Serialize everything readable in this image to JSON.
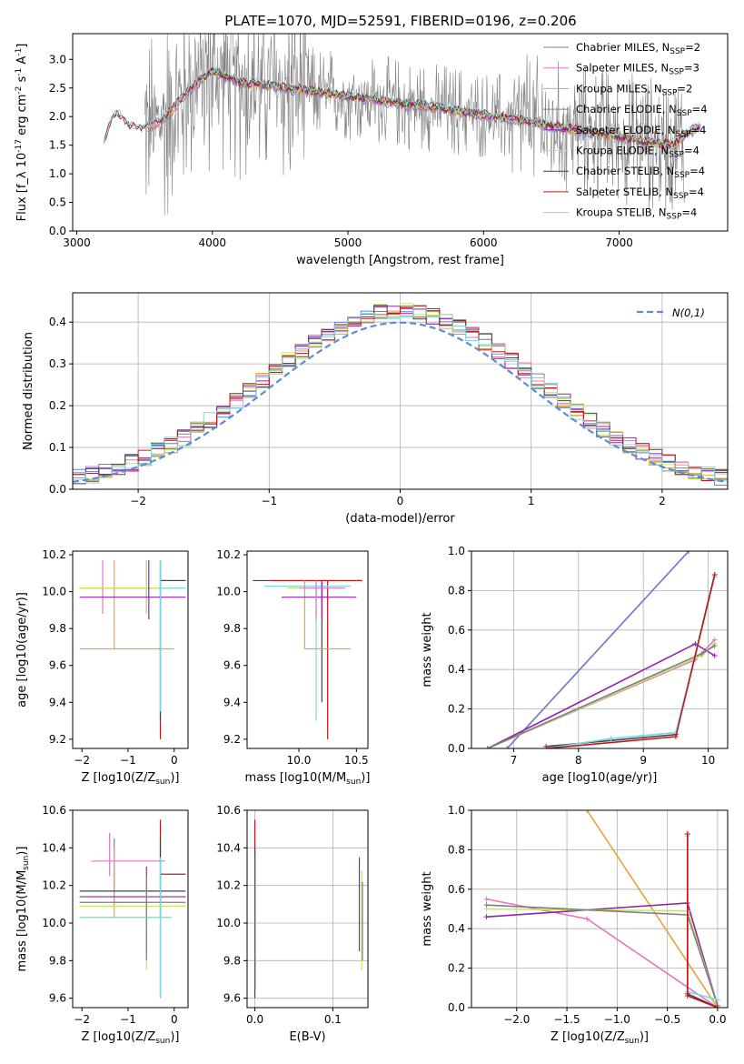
{
  "figure": {
    "title": "PLATE=1070, MJD=52591, FIBERID=0196, z=0.206"
  },
  "series_colors": {
    "Chabrier MILES": "#6b7fd7",
    "Salpeter MILES": "#e377c2",
    "Kroupa MILES": "#e8a33c",
    "Chabrier ELODIE": "#7f7f7f",
    "Salpeter ELODIE": "#8e24aa",
    "Kroupa ELODIE": "#c8e65a",
    "Chabrier STELIB": "#444444",
    "Salpeter STELIB": "#c0181b",
    "Kroupa STELIB": "#7ed7e0"
  },
  "chart_data": [
    {
      "id": "spectrum",
      "type": "line",
      "xlabel": "wavelength [Angstrom, rest frame]",
      "ylabel": "Flux [f_λ 10^-17 erg cm^-2 s^-1 A^-1]",
      "xlim": [
        2970,
        7800
      ],
      "ylim": [
        0,
        3.45
      ],
      "xticks": [
        3000,
        4000,
        5000,
        6000,
        7000
      ],
      "yticks": [
        0.0,
        0.5,
        1.0,
        1.5,
        2.0,
        2.5,
        3.0
      ],
      "grid": false,
      "legend_position": "top-right",
      "observed_color": "#808080",
      "observed_range_A": [
        3500,
        7480
      ],
      "model_continuum": {
        "x": [
          3200,
          3260,
          3300,
          3350,
          3400,
          3450,
          3500,
          3550,
          3600,
          3700,
          3800,
          3900,
          4000,
          4100,
          4200,
          4400,
          4600,
          4800,
          5000,
          5200,
          5400,
          5600,
          5800,
          6000,
          6200,
          6400,
          6600,
          6800,
          7000,
          7200,
          7400,
          7500,
          7600
        ],
        "y": [
          1.5,
          2.0,
          2.05,
          1.9,
          1.82,
          1.78,
          1.8,
          1.85,
          1.9,
          2.1,
          2.4,
          2.6,
          2.8,
          2.7,
          2.6,
          2.55,
          2.48,
          2.42,
          2.35,
          2.3,
          2.22,
          2.18,
          2.1,
          2.03,
          1.95,
          1.88,
          1.8,
          1.72,
          1.65,
          1.55,
          1.5,
          1.7,
          1.85
        ]
      },
      "series": [
        {
          "name": "Chabrier MILES, N_SSP=2"
        },
        {
          "name": "Salpeter MILES, N_SSP=3"
        },
        {
          "name": "Kroupa MILES, N_SSP=2"
        },
        {
          "name": "Chabrier ELODIE, N_SSP=4"
        },
        {
          "name": "Salpeter ELODIE, N_SSP=4"
        },
        {
          "name": "Kroupa ELODIE, N_SSP=4"
        },
        {
          "name": "Chabrier STELIB, N_SSP=4"
        },
        {
          "name": "Salpeter STELIB, N_SSP=4"
        },
        {
          "name": "Kroupa STELIB, N_SSP=4"
        }
      ]
    },
    {
      "id": "residuals",
      "type": "line",
      "xlabel": "(data-model)/error",
      "ylabel": "Normed distribution",
      "xlim": [
        -2.5,
        2.5
      ],
      "ylim": [
        0,
        0.47
      ],
      "xticks": [
        -2,
        -1,
        0,
        1,
        2
      ],
      "yticks": [
        0.0,
        0.1,
        0.2,
        0.3,
        0.4
      ],
      "grid": true,
      "legend_position": "top-right",
      "gaussian_label": "N(0,1)",
      "gaussian_color": "#5b8bd9"
    },
    {
      "id": "age_vs_Z",
      "type": "scatter",
      "xlabel": "Z [log10(Z/Z_sun)]",
      "ylabel": "age  [log10(age/yr)]",
      "xlim": [
        -2.2,
        0.3
      ],
      "ylim": [
        9.15,
        10.22
      ],
      "xticks": [
        -2,
        -1,
        0
      ],
      "yticks": [
        9.2,
        9.4,
        9.6,
        9.8,
        10.0,
        10.2
      ],
      "grid": false,
      "points": [
        {
          "s": "Kroupa MILES",
          "x": -1.3,
          "y": 9.69,
          "xe": [
            -2.05,
            0.0
          ],
          "ye": [
            9.69,
            10.17
          ]
        },
        {
          "s": "Salpeter MILES",
          "x": -1.55,
          "y": 10.02,
          "xe": [
            -2.05,
            0.0
          ],
          "ye": [
            9.88,
            10.17
          ]
        },
        {
          "s": "Chabrier MILES",
          "x": -0.6,
          "y": 10.02,
          "xe": [
            -2.05,
            0.25
          ],
          "ye": [
            9.88,
            10.17
          ]
        },
        {
          "s": "Kroupa ELODIE",
          "x": -0.6,
          "y": 10.02,
          "xe": [
            -2.05,
            0.25
          ],
          "ye": [
            9.88,
            10.17
          ]
        },
        {
          "s": "Salpeter ELODIE",
          "x": -0.55,
          "y": 9.97,
          "xe": [
            -2.05,
            0.25
          ],
          "ye": [
            9.85,
            10.17
          ]
        },
        {
          "s": "Salpeter STELIB",
          "x": -0.3,
          "y": 10.06,
          "xe": [
            -0.3,
            0.25
          ],
          "ye": [
            9.2,
            10.17
          ]
        },
        {
          "s": "Chabrier STELIB",
          "x": -0.3,
          "y": 10.06,
          "xe": [
            -0.3,
            0.25
          ],
          "ye": [
            9.3,
            10.17
          ]
        },
        {
          "s": "Kroupa STELIB",
          "x": -0.3,
          "y": 10.02,
          "xe": [
            -0.3,
            0.25
          ],
          "ye": [
            9.35,
            10.17
          ]
        }
      ]
    },
    {
      "id": "age_vs_mass",
      "type": "scatter",
      "xlabel": "mass [log10(M/M_sun)]",
      "ylabel": "",
      "xlim": [
        9.55,
        10.6
      ],
      "ylim": [
        9.15,
        10.22
      ],
      "xticks": [
        10.0,
        10.5
      ],
      "yticks": [
        9.2,
        9.4,
        9.6,
        9.8,
        10.0,
        10.2
      ],
      "grid": false,
      "points": [
        {
          "s": "Chabrier STELIB",
          "x": 10.2,
          "y": 10.06,
          "xe": [
            9.6,
            10.55
          ],
          "ye": [
            9.4,
            10.06
          ]
        },
        {
          "s": "Salpeter STELIB",
          "x": 10.25,
          "y": 10.06,
          "xe": [
            9.75,
            10.55
          ],
          "ye": [
            9.2,
            10.06
          ]
        },
        {
          "s": "Kroupa STELIB",
          "x": 10.15,
          "y": 10.03,
          "xe": [
            9.7,
            10.45
          ],
          "ye": [
            9.3,
            10.03
          ]
        },
        {
          "s": "Kroupa MILES",
          "x": 10.05,
          "y": 9.69,
          "xe": [
            10.05,
            10.45
          ],
          "ye": [
            9.69,
            10.06
          ]
        },
        {
          "s": "Kroupa ELODIE",
          "x": 10.15,
          "y": 10.02,
          "xe": [
            9.9,
            10.4
          ],
          "ye": [
            9.88,
            10.06
          ]
        },
        {
          "s": "Salpeter ELODIE",
          "x": 10.2,
          "y": 9.97,
          "xe": [
            9.85,
            10.5
          ],
          "ye": [
            9.85,
            10.06
          ]
        },
        {
          "s": "Salpeter MILES",
          "x": 10.15,
          "y": 10.02,
          "xe": [
            10.0,
            10.4
          ],
          "ye": [
            9.85,
            10.06
          ]
        }
      ]
    },
    {
      "id": "weight_vs_age",
      "type": "line",
      "xlabel": "age  [log10(age/yr)]",
      "ylabel": "mass weight",
      "xlim": [
        6.35,
        10.3
      ],
      "ylim": [
        0,
        1.0
      ],
      "xticks": [
        7,
        8,
        9,
        10
      ],
      "yticks": [
        0.0,
        0.2,
        0.4,
        0.6,
        0.8,
        1.0
      ],
      "grid": true,
      "series": [
        {
          "s": "Kroupa MILES",
          "x": [
            6.9,
            9.7
          ],
          "y": [
            0.0,
            1.0
          ]
        },
        {
          "s": "Chabrier MILES",
          "x": [
            6.9,
            9.7
          ],
          "y": [
            0.0,
            1.0
          ]
        },
        {
          "s": "Salpeter MILES",
          "x": [
            6.6,
            9.8,
            10.1
          ],
          "y": [
            0.0,
            0.45,
            0.55
          ]
        },
        {
          "s": "Salpeter ELODIE",
          "x": [
            6.6,
            9.8,
            10.1
          ],
          "y": [
            0.0,
            0.53,
            0.47
          ]
        },
        {
          "s": "Kroupa ELODIE",
          "x": [
            6.6,
            9.9,
            10.1
          ],
          "y": [
            0.0,
            0.47,
            0.53
          ]
        },
        {
          "s": "Chabrier ELODIE",
          "x": [
            6.6,
            9.9,
            10.1
          ],
          "y": [
            0.0,
            0.48,
            0.52
          ]
        },
        {
          "s": "Chabrier STELIB",
          "x": [
            7.5,
            9.5,
            10.1
          ],
          "y": [
            0.01,
            0.07,
            0.88
          ]
        },
        {
          "s": "Kroupa STELIB",
          "x": [
            7.5,
            8.5,
            9.5,
            10.1
          ],
          "y": [
            0.0,
            0.05,
            0.08,
            0.87
          ]
        },
        {
          "s": "Salpeter STELIB",
          "x": [
            7.5,
            9.5,
            10.1
          ],
          "y": [
            0.0,
            0.06,
            0.88
          ]
        }
      ]
    },
    {
      "id": "mass_vs_Z",
      "type": "scatter",
      "xlabel": "Z [log10(Z/Z_sun)]",
      "ylabel": "mass [log10(M/M_sun)]",
      "xlim": [
        -2.2,
        0.3
      ],
      "ylim": [
        9.55,
        10.6
      ],
      "xticks": [
        -2,
        -1,
        0
      ],
      "yticks": [
        9.6,
        9.8,
        10.0,
        10.2,
        10.4,
        10.6
      ],
      "grid": false,
      "points": [
        {
          "s": "Salpeter MILES",
          "x": -1.4,
          "y": 10.33,
          "xe": [
            -1.8,
            -0.2
          ],
          "ye": [
            10.25,
            10.48
          ]
        },
        {
          "s": "Chabrier MILES",
          "x": -1.3,
          "y": 10.28,
          "xe": [
            -1.3,
            -1.3
          ],
          "ye": [
            10.1,
            10.45
          ]
        },
        {
          "s": "Kroupa MILES",
          "x": -1.3,
          "y": 10.03,
          "xe": [
            -2.05,
            -0.1
          ],
          "ye": [
            10.03,
            10.4
          ]
        },
        {
          "s": "Salpeter STELIB",
          "x": -0.3,
          "y": 10.26,
          "xe": [
            -0.3,
            0.25
          ],
          "ye": [
            10.03,
            10.55
          ]
        },
        {
          "s": "Chabrier STELIB",
          "x": -0.3,
          "y": 10.17,
          "xe": [
            -2.05,
            0.25
          ],
          "ye": [
            9.6,
            10.45
          ]
        },
        {
          "s": "Salpeter ELODIE",
          "x": -0.6,
          "y": 10.14,
          "xe": [
            -2.05,
            0.25
          ],
          "ye": [
            9.85,
            10.3
          ]
        },
        {
          "s": "Kroupa ELODIE",
          "x": -0.6,
          "y": 10.09,
          "xe": [
            -2.05,
            0.25
          ],
          "ye": [
            9.75,
            10.25
          ]
        },
        {
          "s": "Chabrier ELODIE",
          "x": -0.6,
          "y": 10.11,
          "xe": [
            -2.05,
            0.25
          ],
          "ye": [
            9.8,
            10.25
          ]
        },
        {
          "s": "Kroupa STELIB",
          "x": -0.3,
          "y": 10.03,
          "xe": [
            -2.05,
            -0.05
          ],
          "ye": [
            9.6,
            10.35
          ]
        }
      ]
    },
    {
      "id": "mass_vs_ebv",
      "type": "scatter",
      "xlabel": "E(B-V)",
      "ylabel": "",
      "xlim": [
        -0.01,
        0.145
      ],
      "ylim": [
        9.55,
        10.6
      ],
      "xticks": [
        0.0,
        0.1
      ],
      "yticks": [
        9.6,
        9.8,
        10.0,
        10.2,
        10.4,
        10.6
      ],
      "grid": true,
      "points": [
        {
          "s": "Salpeter STELIB",
          "x": 0.0,
          "ye": [
            10.25,
            10.55
          ]
        },
        {
          "s": "Chabrier STELIB",
          "x": 0.0,
          "ye": [
            9.6,
            10.4
          ]
        },
        {
          "s": "Kroupa STELIB",
          "x": 0.001,
          "ye": [
            9.65,
            10.35
          ]
        },
        {
          "s": "Salpeter ELODIE",
          "x": 0.134,
          "ye": [
            9.85,
            10.35
          ]
        },
        {
          "s": "Kroupa ELODIE",
          "x": 0.137,
          "ye": [
            9.75,
            10.28
          ]
        },
        {
          "s": "Chabrier ELODIE",
          "x": 0.138,
          "ye": [
            9.8,
            10.22
          ]
        }
      ]
    },
    {
      "id": "weight_vs_Z",
      "type": "line",
      "xlabel": "Z [log10(Z/Z_sun)]",
      "ylabel": "mass weight",
      "xlim": [
        -2.45,
        0.1
      ],
      "ylim": [
        0,
        1.0
      ],
      "xticks": [
        -2.0,
        -1.5,
        -1.0,
        -0.5,
        0.0
      ],
      "yticks": [
        0.0,
        0.2,
        0.4,
        0.6,
        0.8,
        1.0
      ],
      "grid": true,
      "series": [
        {
          "s": "Kroupa MILES",
          "x": [
            -1.3,
            0.0
          ],
          "y": [
            1.0,
            0.0
          ]
        },
        {
          "s": "Salpeter MILES",
          "x": [
            -2.3,
            -1.3,
            0.0
          ],
          "y": [
            0.55,
            0.45,
            0.0
          ]
        },
        {
          "s": "Salpeter ELODIE",
          "x": [
            -2.3,
            -0.3,
            0.0
          ],
          "y": [
            0.46,
            0.53,
            0.01
          ]
        },
        {
          "s": "Kroupa ELODIE",
          "x": [
            -2.3,
            -0.3,
            0.0
          ],
          "y": [
            0.5,
            0.49,
            0.01
          ]
        },
        {
          "s": "Chabrier ELODIE",
          "x": [
            -2.3,
            -0.3,
            0.0
          ],
          "y": [
            0.52,
            0.47,
            0.01
          ]
        },
        {
          "s": "Chabrier STELIB",
          "x": [
            -0.3,
            -0.3,
            0.0
          ],
          "y": [
            0.88,
            0.07,
            0.0
          ]
        },
        {
          "s": "Kroupa STELIB",
          "x": [
            -0.3,
            -0.3,
            0.0
          ],
          "y": [
            0.87,
            0.08,
            0.04
          ]
        },
        {
          "s": "Salpeter STELIB",
          "x": [
            -0.3,
            -0.3,
            0.0
          ],
          "y": [
            0.88,
            0.06,
            0.0
          ]
        }
      ]
    }
  ]
}
